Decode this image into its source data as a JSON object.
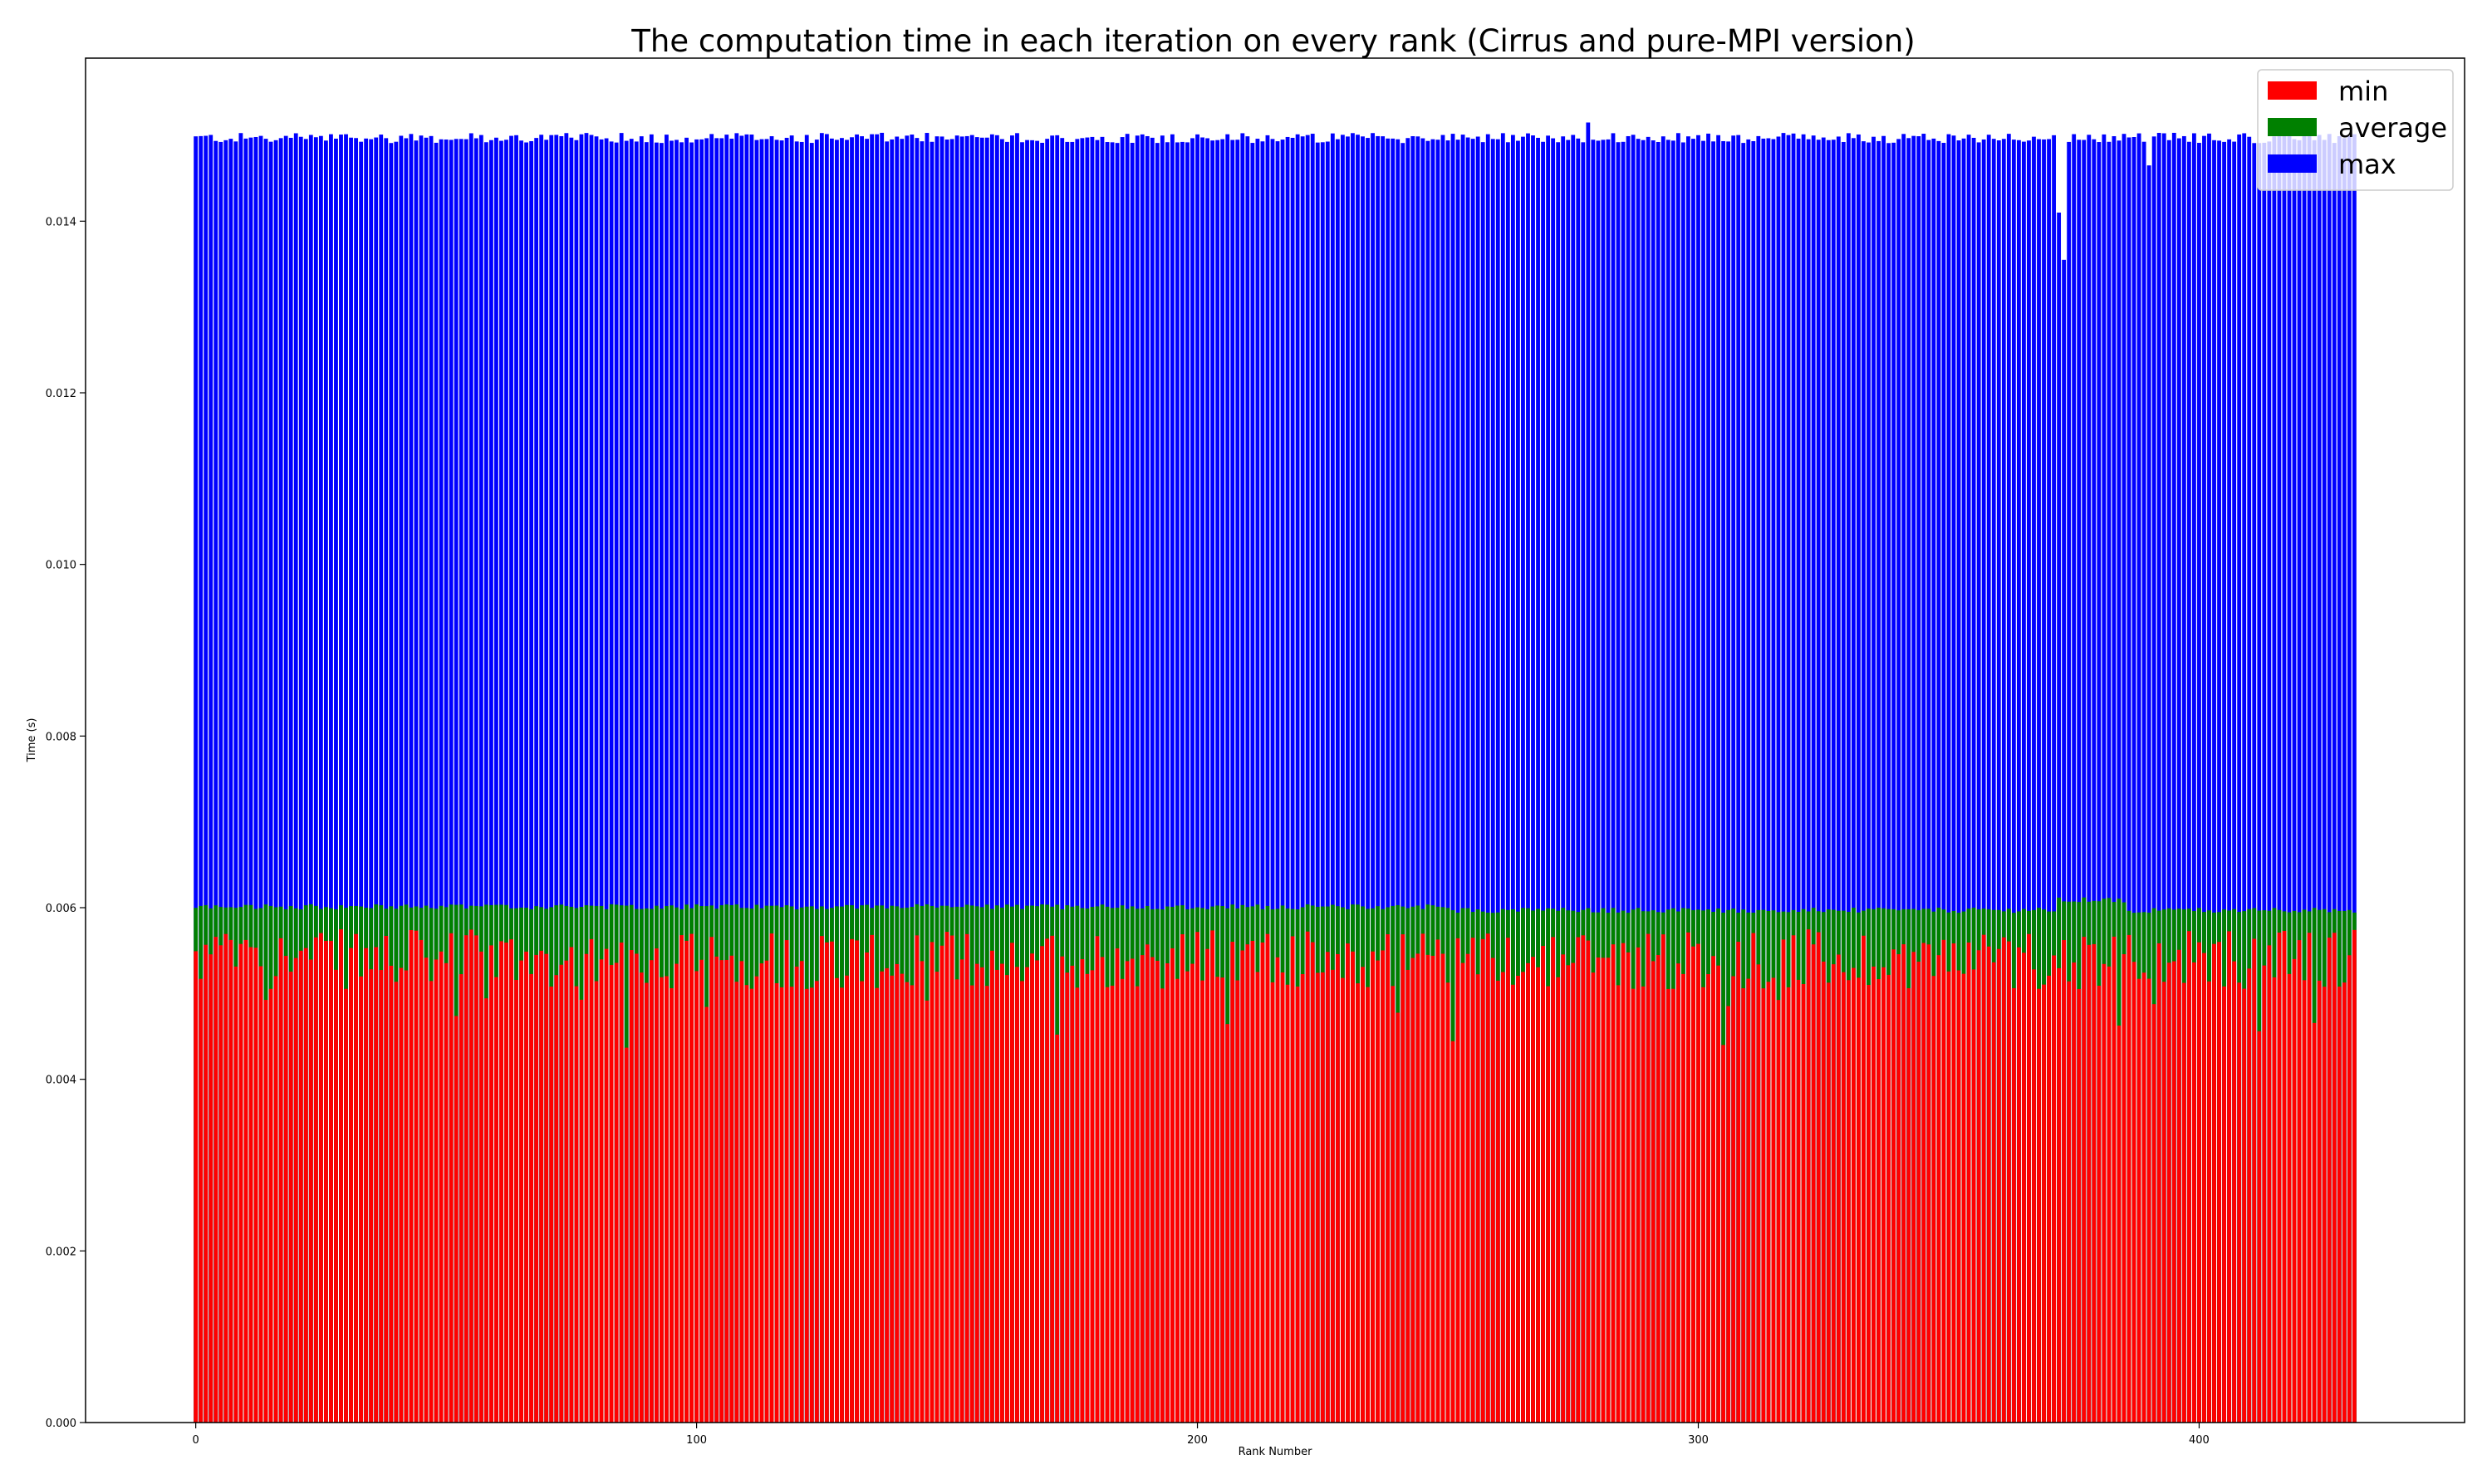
{
  "chart_data": {
    "type": "bar",
    "title": "The computation time in each iteration on every rank (Cirrus and pure-MPI version)",
    "xlabel": "Rank Number",
    "ylabel": "Time (s)",
    "xlim": [
      -22,
      453
    ],
    "ylim": [
      0,
      0.0159
    ],
    "xticks": [
      0,
      100,
      200,
      300,
      400
    ],
    "yticks": [
      0.0,
      0.002,
      0.004,
      0.006,
      0.008,
      0.01,
      0.012,
      0.014
    ],
    "ytick_labels": [
      "0.000",
      "0.002",
      "0.004",
      "0.006",
      "0.008",
      "0.010",
      "0.012",
      "0.014"
    ],
    "grid": false,
    "legend_position": "top-right",
    "n_ranks": 432,
    "series": [
      {
        "name": "min",
        "color": "#ff0000"
      },
      {
        "name": "average",
        "color": "#008000"
      },
      {
        "name": "max",
        "color": "#0000ff"
      }
    ],
    "max_typical": 0.01497,
    "average_typical": 0.00601,
    "min_typical": 0.0054,
    "max_anomalies": [
      {
        "rank": 372,
        "value": 0.0141
      },
      {
        "rank": 373,
        "value": 0.01355
      },
      {
        "rank": 390,
        "value": 0.01465
      },
      {
        "rank": 278,
        "value": 0.01515
      }
    ]
  }
}
